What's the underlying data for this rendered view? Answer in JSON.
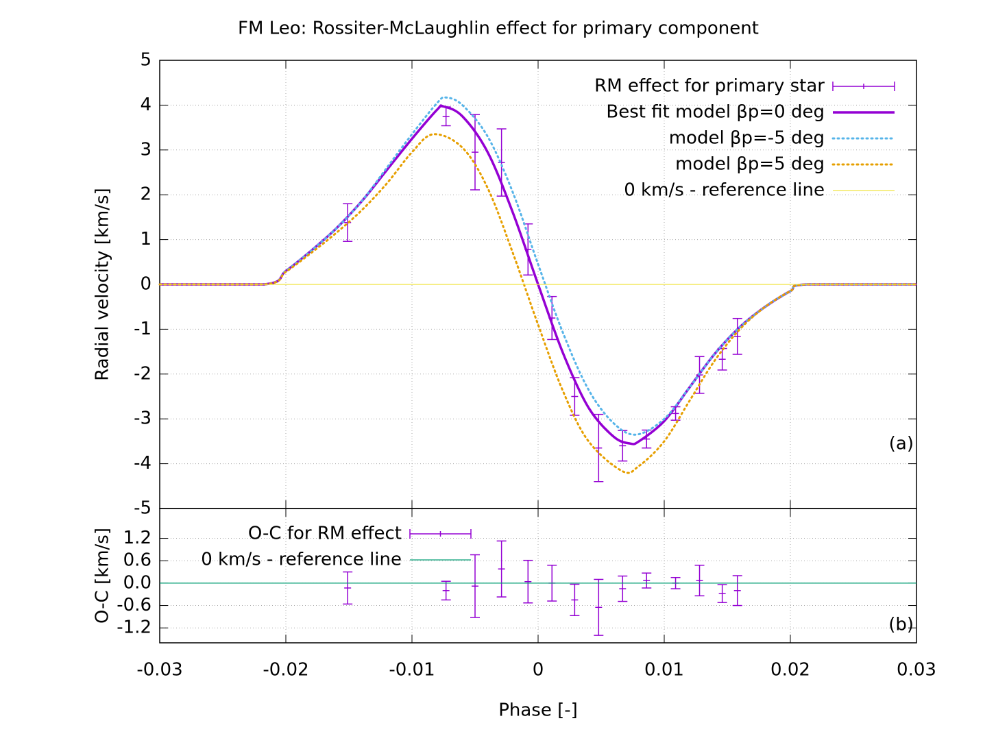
{
  "chart_data": [
    {
      "type": "line",
      "title": "FM Leo: Rossiter-McLaughlin effect for primary component",
      "ylabel": "Radial velocity [km/s]",
      "annotation": "(a)",
      "xlim": [
        -0.03,
        0.03
      ],
      "xticks": [
        -0.03,
        -0.02,
        -0.01,
        0,
        0.01,
        0.02,
        0.03
      ],
      "ylim": [
        -5,
        5
      ],
      "yticks": [
        -5,
        -4,
        -3,
        -2,
        -1,
        0,
        1,
        2,
        3,
        4,
        5
      ],
      "grid": true,
      "legend": "top-right",
      "series": [
        {
          "name": "RM effect for primary star",
          "color": "#9400d3",
          "style": "errorbar",
          "x": [
            -0.0151,
            -0.0073,
            -0.005,
            -0.0029,
            -0.0008,
            0.0011,
            0.0029,
            0.0048,
            0.0067,
            0.0086,
            0.0109,
            0.0128,
            0.0146,
            0.0158
          ],
          "values": [
            1.38,
            3.75,
            2.95,
            2.72,
            0.78,
            -0.75,
            -2.5,
            -3.65,
            -3.6,
            -3.45,
            -2.88,
            -2.02,
            -1.67,
            -1.16
          ],
          "errors": [
            0.42,
            0.21,
            0.84,
            0.75,
            0.57,
            0.48,
            0.42,
            0.75,
            0.34,
            0.2,
            0.15,
            0.41,
            0.24,
            0.4
          ]
        },
        {
          "name": "Best fit model βp=0 deg",
          "color": "#9400d3",
          "style": "solid",
          "x": [
            -0.03,
            -0.0217,
            -0.02,
            -0.018,
            -0.016,
            -0.014,
            -0.012,
            -0.01,
            -0.008,
            -0.0075,
            -0.006,
            -0.004,
            -0.002,
            0,
            0.002,
            0.004,
            0.006,
            0.0073,
            0.008,
            0.01,
            0.012,
            0.014,
            0.016,
            0.018,
            0.02,
            0.0213,
            0.03
          ],
          "values": [
            0,
            0,
            0.3,
            0.75,
            1.25,
            1.85,
            2.55,
            3.25,
            3.9,
            3.97,
            3.75,
            2.95,
            1.6,
            0,
            -1.55,
            -2.75,
            -3.4,
            -3.55,
            -3.5,
            -3.05,
            -2.3,
            -1.55,
            -0.95,
            -0.5,
            -0.15,
            0,
            0
          ]
        },
        {
          "name": "model βp=-5 deg",
          "color": "#56b4e9",
          "style": "dotted",
          "x": [
            -0.03,
            -0.0217,
            -0.02,
            -0.018,
            -0.016,
            -0.014,
            -0.012,
            -0.01,
            -0.008,
            -0.0073,
            -0.006,
            -0.004,
            -0.002,
            0,
            0.002,
            0.004,
            0.006,
            0.0078,
            0.01,
            0.012,
            0.014,
            0.016,
            0.018,
            0.02,
            0.0213,
            0.03
          ],
          "values": [
            0,
            0,
            0.3,
            0.75,
            1.25,
            1.85,
            2.6,
            3.35,
            4.05,
            4.17,
            4.0,
            3.3,
            2.05,
            0.45,
            -1.1,
            -2.35,
            -3.1,
            -3.35,
            -3.0,
            -2.3,
            -1.55,
            -0.95,
            -0.5,
            -0.15,
            0,
            0
          ]
        },
        {
          "name": "model βp=5 deg",
          "color": "#e69f00",
          "style": "dotted",
          "x": [
            -0.03,
            -0.0217,
            -0.02,
            -0.018,
            -0.016,
            -0.014,
            -0.012,
            -0.01,
            -0.0083,
            -0.006,
            -0.004,
            -0.002,
            0,
            0.002,
            0.004,
            0.0067,
            0.008,
            0.01,
            0.012,
            0.014,
            0.016,
            0.018,
            0.02,
            0.0213,
            0.03
          ],
          "values": [
            0,
            0,
            0.28,
            0.7,
            1.15,
            1.65,
            2.25,
            2.95,
            3.35,
            3.05,
            2.15,
            0.7,
            -0.9,
            -2.4,
            -3.5,
            -4.17,
            -4.05,
            -3.5,
            -2.6,
            -1.7,
            -1.0,
            -0.5,
            -0.15,
            0,
            0
          ]
        },
        {
          "name": "0 km/s - reference line",
          "color": "#f0e442",
          "style": "thin",
          "x": [
            -0.03,
            0.03
          ],
          "values": [
            0,
            0
          ]
        }
      ]
    },
    {
      "type": "line",
      "ylabel": "O-C [km/s]",
      "xlabel": "Phase [-]",
      "annotation": "(b)",
      "xlim": [
        -0.03,
        0.03
      ],
      "xticks": [
        -0.03,
        -0.02,
        -0.01,
        0,
        0.01,
        0.02,
        0.03
      ],
      "ylim": [
        -1.6,
        2.0
      ],
      "yticks": [
        {
          "value": -1.2,
          "label": "-1.2"
        },
        {
          "value": -0.6,
          "label": "-0.6"
        },
        {
          "value": 0,
          "label": "0.0"
        },
        0.6,
        1.2
      ],
      "grid": true,
      "legend": "top-left",
      "series": [
        {
          "name": "O-C for RM effect",
          "color": "#9400d3",
          "style": "errorbar",
          "x": [
            -0.0151,
            -0.0073,
            -0.005,
            -0.0029,
            -0.0008,
            0.0011,
            0.0029,
            0.0048,
            0.0067,
            0.0086,
            0.0109,
            0.0128,
            0.0146,
            0.0158
          ],
          "values": [
            -0.13,
            -0.2,
            -0.08,
            0.38,
            0.04,
            0.0,
            -0.45,
            -0.65,
            -0.15,
            0.07,
            0.0,
            0.07,
            -0.28,
            -0.2
          ],
          "errors": [
            0.43,
            0.25,
            0.84,
            0.75,
            0.57,
            0.48,
            0.42,
            0.75,
            0.34,
            0.2,
            0.15,
            0.41,
            0.24,
            0.4
          ]
        },
        {
          "name": "0 km/s - reference line",
          "color": "#009e73",
          "style": "thin",
          "x": [
            -0.03,
            0.03
          ],
          "values": [
            0,
            0
          ]
        }
      ]
    }
  ]
}
